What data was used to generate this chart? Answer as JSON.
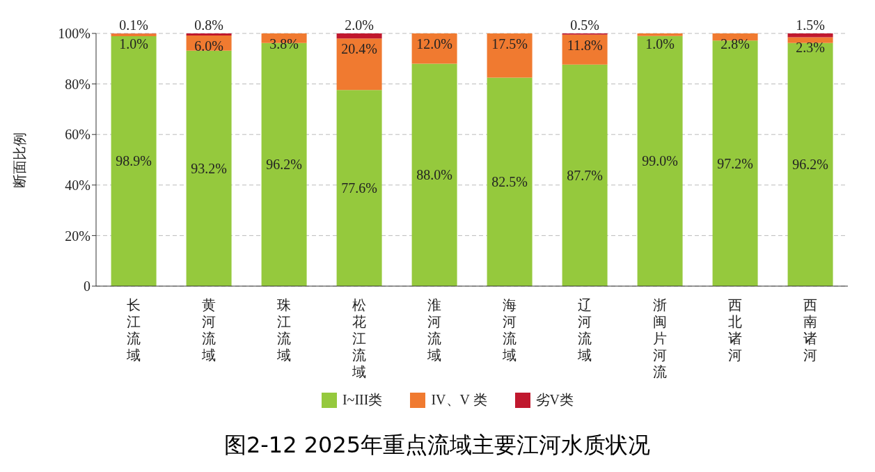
{
  "chart_data": {
    "type": "bar",
    "stacked": true,
    "title": "图2-12  2025年重点流域主要江河水质状况",
    "ylabel": "断面比例",
    "categories": [
      "长江流域",
      "黄河流域",
      "珠江流域",
      "松花江流域",
      "淮河流域",
      "海河流域",
      "辽河流域",
      "浙闽片河流",
      "西北诸河",
      "西南诸河"
    ],
    "series": [
      {
        "name": "I~III类",
        "color": "#95c93d",
        "values": [
          98.9,
          93.2,
          96.2,
          77.6,
          88.0,
          82.5,
          87.7,
          99.0,
          97.2,
          96.2
        ],
        "value_labels": [
          "98.9%",
          "93.2%",
          "96.2%",
          "77.6%",
          "88.0%",
          "82.5%",
          "87.7%",
          "99.0%",
          "97.2%",
          "96.2%"
        ]
      },
      {
        "name": "IV、V 类",
        "color": "#f07a30",
        "values": [
          1.0,
          6.0,
          3.8,
          20.4,
          12.0,
          17.5,
          11.8,
          1.0,
          2.8,
          2.3
        ],
        "value_labels": [
          "1.0%",
          "6.0%",
          "3.8%",
          "20.4%",
          "12.0%",
          "17.5%",
          "11.8%",
          "1.0%",
          "2.8%",
          "2.3%"
        ]
      },
      {
        "name": "劣V类",
        "color": "#c0182e",
        "values": [
          0.1,
          0.8,
          0,
          2.0,
          0,
          0,
          0.5,
          0,
          0,
          1.5
        ],
        "value_labels": [
          "0.1%",
          "0.8%",
          null,
          "2.0%",
          null,
          null,
          "0.5%",
          null,
          null,
          "1.5%"
        ]
      }
    ],
    "ylim": [
      0,
      100
    ],
    "yticks": [
      0,
      {
        "value": 20,
        "label": "20%"
      },
      {
        "value": 40,
        "label": "40%"
      },
      {
        "value": 60,
        "label": "60%"
      },
      {
        "value": 80,
        "label": "80%"
      },
      {
        "value": 100,
        "label": "100%"
      }
    ],
    "grid": "y",
    "legend": "bottom"
  }
}
